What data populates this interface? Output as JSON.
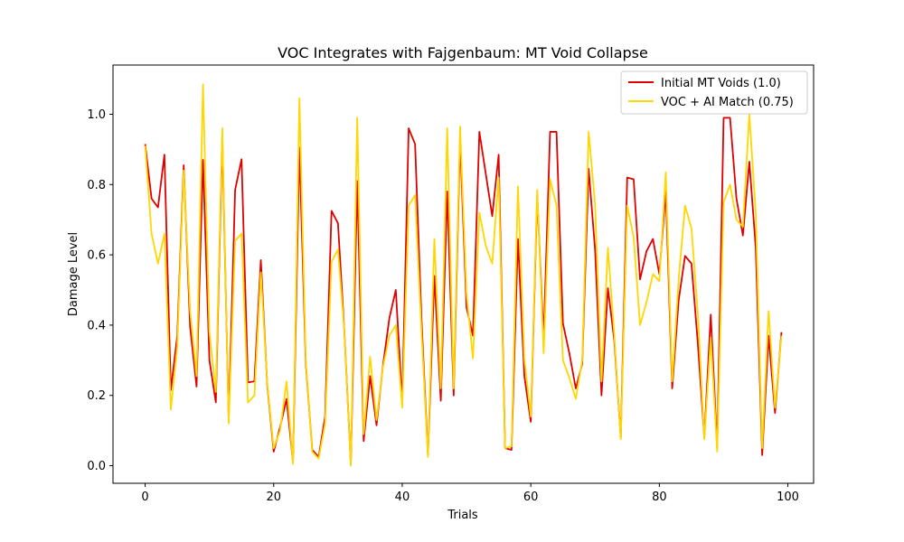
{
  "chart_data": {
    "type": "line",
    "title": "VOC Integrates with Fajgenbaum: MT Void Collapse",
    "xlabel": "Trials",
    "ylabel": "Damage Level",
    "xlim": [
      -5,
      104
    ],
    "ylim": [
      -0.05,
      1.14
    ],
    "xticks": [
      0,
      20,
      40,
      60,
      80,
      100
    ],
    "yticks": [
      0.0,
      0.2,
      0.4,
      0.6,
      0.8,
      1.0
    ],
    "ytick_labels": [
      "0.0",
      "0.2",
      "0.4",
      "0.6",
      "0.8",
      "1.0"
    ],
    "grid": false,
    "legend_position": "top-right",
    "x": [
      0,
      1,
      2,
      3,
      4,
      5,
      6,
      7,
      8,
      9,
      10,
      11,
      12,
      13,
      14,
      15,
      16,
      17,
      18,
      19,
      20,
      21,
      22,
      23,
      24,
      25,
      26,
      27,
      28,
      29,
      30,
      31,
      32,
      33,
      34,
      35,
      36,
      37,
      38,
      39,
      40,
      41,
      42,
      43,
      44,
      45,
      46,
      47,
      48,
      49,
      50,
      51,
      52,
      53,
      54,
      55,
      56,
      57,
      58,
      59,
      60,
      61,
      62,
      63,
      64,
      65,
      66,
      67,
      68,
      69,
      70,
      71,
      72,
      73,
      74,
      75,
      76,
      77,
      78,
      79,
      80,
      81,
      82,
      83,
      84,
      85,
      86,
      87,
      88,
      89,
      90,
      91,
      92,
      93,
      94,
      95,
      96,
      97,
      98,
      99
    ],
    "series": [
      {
        "name": "Initial MT Voids (1.0)",
        "color": "#e00000",
        "values": [
          0.915,
          0.76,
          0.735,
          0.885,
          0.215,
          0.37,
          0.855,
          0.395,
          0.225,
          0.87,
          0.3,
          0.18,
          0.935,
          0.13,
          0.785,
          0.872,
          0.237,
          0.24,
          0.585,
          0.23,
          0.04,
          0.11,
          0.19,
          0.01,
          0.905,
          0.29,
          0.045,
          0.025,
          0.14,
          0.725,
          0.69,
          0.38,
          0.005,
          0.81,
          0.07,
          0.255,
          0.115,
          0.285,
          0.42,
          0.5,
          0.18,
          0.96,
          0.915,
          0.415,
          0.03,
          0.54,
          0.185,
          0.78,
          0.2,
          0.93,
          0.45,
          0.37,
          0.95,
          0.83,
          0.71,
          0.885,
          0.05,
          0.045,
          0.645,
          0.255,
          0.125,
          0.77,
          0.36,
          0.95,
          0.95,
          0.405,
          0.32,
          0.22,
          0.29,
          0.845,
          0.615,
          0.2,
          0.505,
          0.355,
          0.08,
          0.82,
          0.815,
          0.53,
          0.61,
          0.645,
          0.545,
          0.78,
          0.22,
          0.47,
          0.597,
          0.575,
          0.345,
          0.08,
          0.43,
          0.05,
          0.99,
          0.99,
          0.76,
          0.655,
          0.865,
          0.62,
          0.03,
          0.37,
          0.15,
          0.38
        ]
      },
      {
        "name": "VOC + AI Match (0.75)",
        "color": "#ffd700",
        "values": [
          0.91,
          0.66,
          0.575,
          0.66,
          0.16,
          0.34,
          0.84,
          0.44,
          0.255,
          1.085,
          0.38,
          0.21,
          0.96,
          0.12,
          0.64,
          0.66,
          0.18,
          0.2,
          0.55,
          0.235,
          0.05,
          0.1,
          0.24,
          0.005,
          1.045,
          0.3,
          0.04,
          0.02,
          0.12,
          0.58,
          0.615,
          0.38,
          0.0,
          0.99,
          0.09,
          0.31,
          0.13,
          0.28,
          0.37,
          0.4,
          0.165,
          0.74,
          0.77,
          0.38,
          0.025,
          0.645,
          0.22,
          0.96,
          0.22,
          0.965,
          0.49,
          0.305,
          0.72,
          0.625,
          0.575,
          0.82,
          0.05,
          0.055,
          0.795,
          0.305,
          0.14,
          0.785,
          0.32,
          0.815,
          0.74,
          0.3,
          0.25,
          0.19,
          0.3,
          0.95,
          0.745,
          0.24,
          0.62,
          0.37,
          0.075,
          0.74,
          0.65,
          0.4,
          0.465,
          0.545,
          0.525,
          0.835,
          0.24,
          0.53,
          0.74,
          0.675,
          0.43,
          0.075,
          0.365,
          0.04,
          0.75,
          0.8,
          0.7,
          0.68,
          1.0,
          0.72,
          0.05,
          0.44,
          0.165,
          0.37
        ]
      }
    ]
  }
}
